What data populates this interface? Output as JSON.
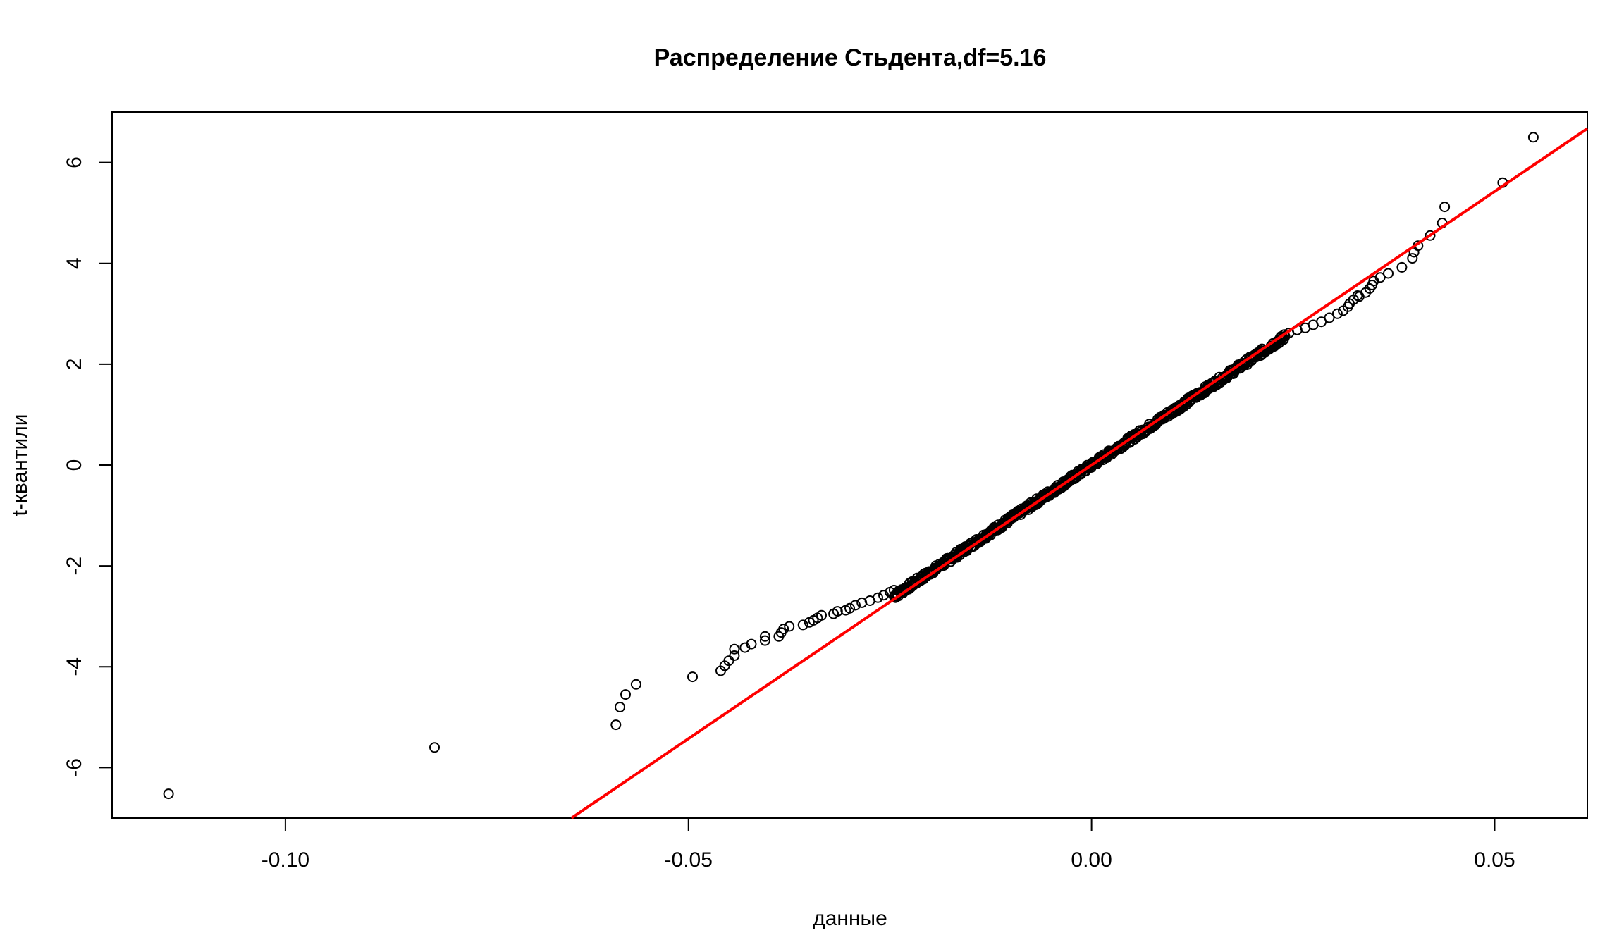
{
  "chart_data": {
    "type": "scatter",
    "title": "Распределение Стьдента,df=5.16",
    "xlabel": "данные",
    "ylabel": "t-квантили",
    "xlim": [
      -0.1215,
      0.0615
    ],
    "ylim": [
      -7.0,
      7.0
    ],
    "x_ticks": [
      -0.1,
      -0.05,
      0.0,
      0.05
    ],
    "x_tick_labels": [
      "-0.10",
      "-0.05",
      "0.00",
      "0.05"
    ],
    "y_ticks": [
      -6,
      -4,
      -2,
      0,
      2,
      4,
      6
    ],
    "y_tick_labels": [
      "-6",
      "-4",
      "-2",
      "0",
      "2",
      "4",
      "6"
    ],
    "grid": false,
    "point_style": "open-circle",
    "point_color": "#000000",
    "reference_line": {
      "slope": 108.5,
      "intercept": 0.0,
      "color": "#ff0000"
    },
    "outlier_points": [
      [
        -0.1145,
        -6.52
      ],
      [
        -0.0815,
        -5.6
      ],
      [
        -0.059,
        -5.15
      ],
      [
        -0.0585,
        -4.8
      ],
      [
        -0.0578,
        -4.55
      ],
      [
        -0.0565,
        -4.35
      ],
      [
        -0.0495,
        -4.2
      ],
      [
        -0.046,
        -4.08
      ],
      [
        -0.0455,
        -3.98
      ],
      [
        -0.045,
        -3.88
      ],
      [
        -0.0443,
        -3.78
      ],
      [
        -0.0443,
        -3.65
      ],
      [
        -0.043,
        -3.62
      ],
      [
        -0.0422,
        -3.55
      ],
      [
        -0.0405,
        -3.48
      ],
      [
        -0.0405,
        -3.4
      ],
      [
        -0.0388,
        -3.4
      ],
      [
        -0.0385,
        -3.32
      ],
      [
        -0.0382,
        -3.25
      ],
      [
        -0.0375,
        -3.2
      ],
      [
        -0.0358,
        -3.17
      ],
      [
        -0.035,
        -3.12
      ],
      [
        -0.0345,
        -3.08
      ],
      [
        -0.034,
        -3.03
      ],
      [
        -0.0335,
        -2.98
      ],
      [
        -0.032,
        -2.95
      ],
      [
        -0.0315,
        -2.9
      ],
      [
        -0.0305,
        -2.88
      ],
      [
        -0.03,
        -2.84
      ],
      [
        -0.0293,
        -2.78
      ],
      [
        -0.0285,
        -2.73
      ],
      [
        -0.0275,
        -2.69
      ],
      [
        -0.0265,
        -2.63
      ],
      [
        -0.0258,
        -2.58
      ],
      [
        -0.025,
        -2.52
      ],
      [
        -0.0245,
        -2.48
      ],
      [
        0.0245,
        2.62
      ],
      [
        0.0255,
        2.68
      ],
      [
        0.0265,
        2.72
      ],
      [
        0.0275,
        2.78
      ],
      [
        0.0285,
        2.84
      ],
      [
        0.0295,
        2.92
      ],
      [
        0.0305,
        3.0
      ],
      [
        0.0312,
        3.06
      ],
      [
        0.0318,
        3.14
      ],
      [
        0.032,
        3.2
      ],
      [
        0.0325,
        3.28
      ],
      [
        0.033,
        3.36
      ],
      [
        0.0332,
        3.34
      ],
      [
        0.034,
        3.42
      ],
      [
        0.0345,
        3.5
      ],
      [
        0.0348,
        3.57
      ],
      [
        0.035,
        3.65
      ],
      [
        0.0358,
        3.72
      ],
      [
        0.0368,
        3.8
      ],
      [
        0.0385,
        3.92
      ],
      [
        0.0398,
        4.1
      ],
      [
        0.04,
        4.22
      ],
      [
        0.0405,
        4.35
      ],
      [
        0.042,
        4.55
      ],
      [
        0.0435,
        4.8
      ],
      [
        0.0438,
        5.12
      ],
      [
        0.051,
        5.6
      ],
      [
        0.0548,
        6.5
      ]
    ],
    "body_points": {
      "x_from": -0.0245,
      "x_to": 0.024,
      "count": 560,
      "fit_slope": 106.2,
      "fit_intercept": 0.0,
      "jitter_y": 0.06
    }
  }
}
